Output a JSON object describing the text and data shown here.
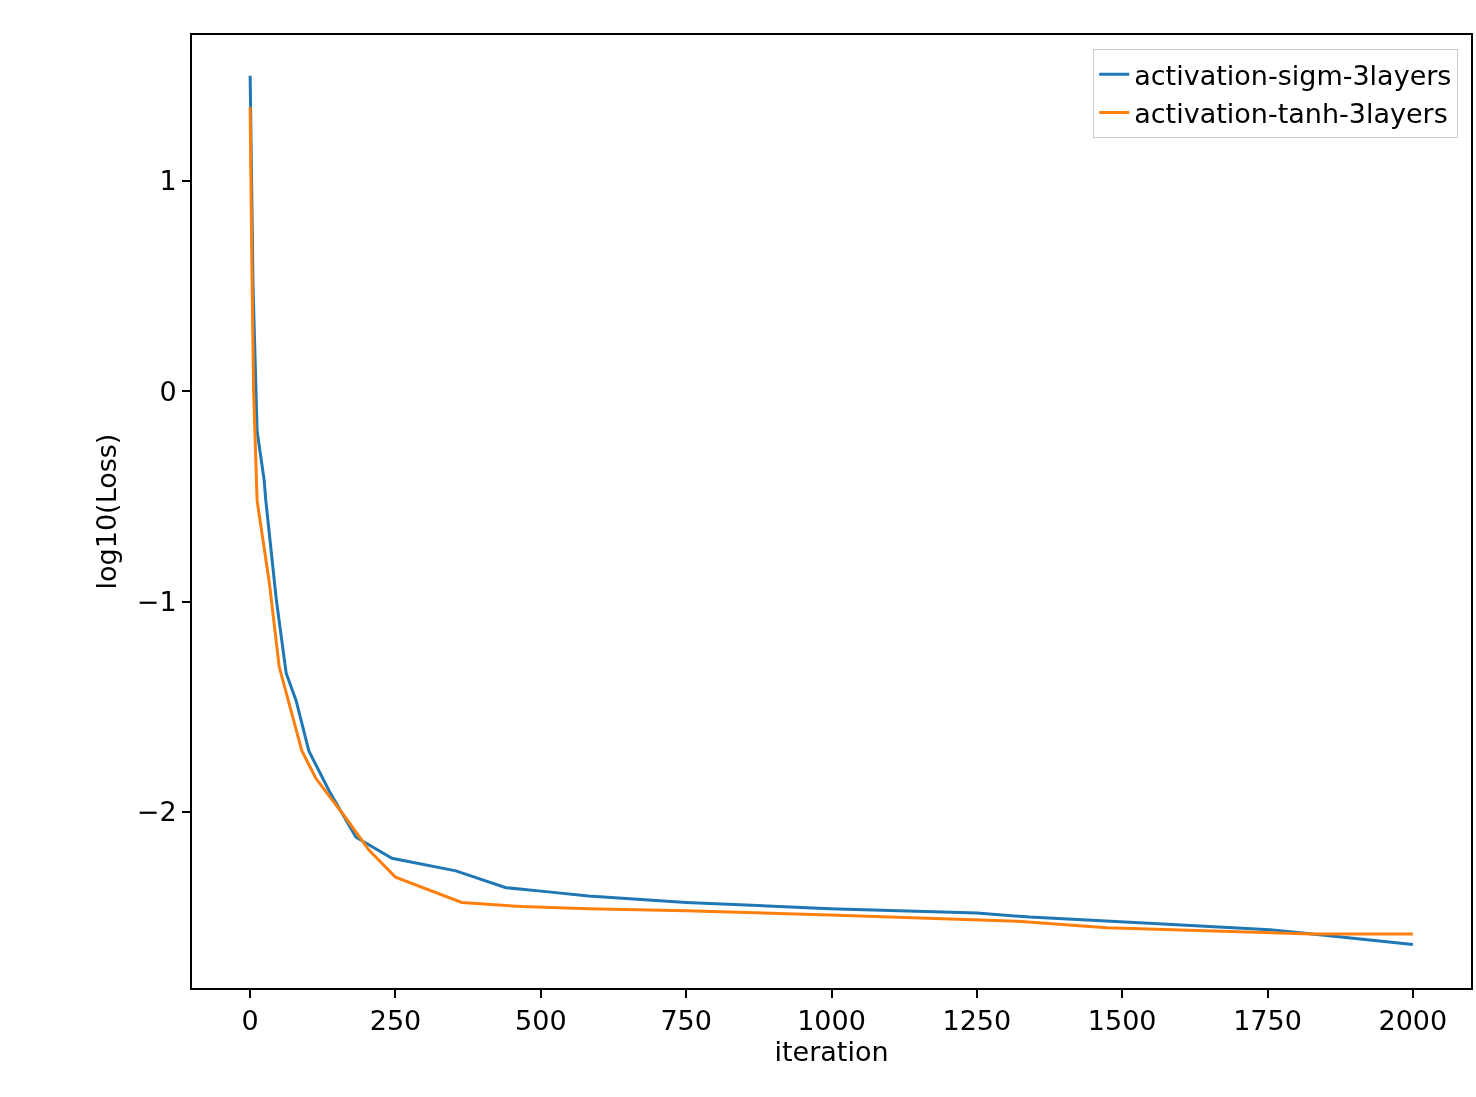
{
  "chart_data": {
    "type": "line",
    "xlabel": "iteration",
    "ylabel": "log10(Loss)",
    "xlim": [
      -100,
      2100
    ],
    "ylim": [
      -2.837,
      1.694
    ],
    "xticks": [
      0,
      250,
      500,
      750,
      1000,
      1250,
      1500,
      1750,
      2000
    ],
    "yticks": [
      {
        "value": -2,
        "label": "−2"
      },
      {
        "value": -1,
        "label": "−1"
      },
      0,
      1
    ],
    "legend": "top right",
    "marker": "none",
    "line_style": "solid",
    "series": [
      {
        "name": "activation-sigm-3layers",
        "color": "#1f77b4",
        "x": [
          0,
          5,
          12,
          24,
          27,
          45,
          62,
          79,
          101,
          136,
          182,
          244,
          354,
          440,
          513,
          582,
          750,
          997,
          1250,
          1341,
          1554,
          1754,
          1827,
          2000
        ],
        "values": [
          1.5,
          0.5,
          -0.19,
          -0.42,
          -0.52,
          -0.99,
          -1.34,
          -1.47,
          -1.71,
          -1.9,
          -2.12,
          -2.22,
          -2.28,
          -2.36,
          -2.38,
          -2.4,
          -2.43,
          -2.46,
          -2.48,
          -2.5,
          -2.53,
          -2.56,
          -2.58,
          -2.63
        ]
      },
      {
        "name": "activation-tanh-3layers",
        "color": "#ff7f0e",
        "x": [
          0,
          3,
          6,
          12,
          33,
          50,
          89,
          113,
          165,
          204,
          250,
          364,
          467,
          582,
          750,
          997,
          1320,
          1473,
          1827,
          2000
        ],
        "values": [
          1.35,
          0.6,
          0.0,
          -0.52,
          -0.91,
          -1.31,
          -1.71,
          -1.84,
          -2.03,
          -2.18,
          -2.31,
          -2.43,
          -2.45,
          -2.46,
          -2.47,
          -2.49,
          -2.52,
          -2.55,
          -2.58,
          -2.58
        ]
      }
    ]
  }
}
